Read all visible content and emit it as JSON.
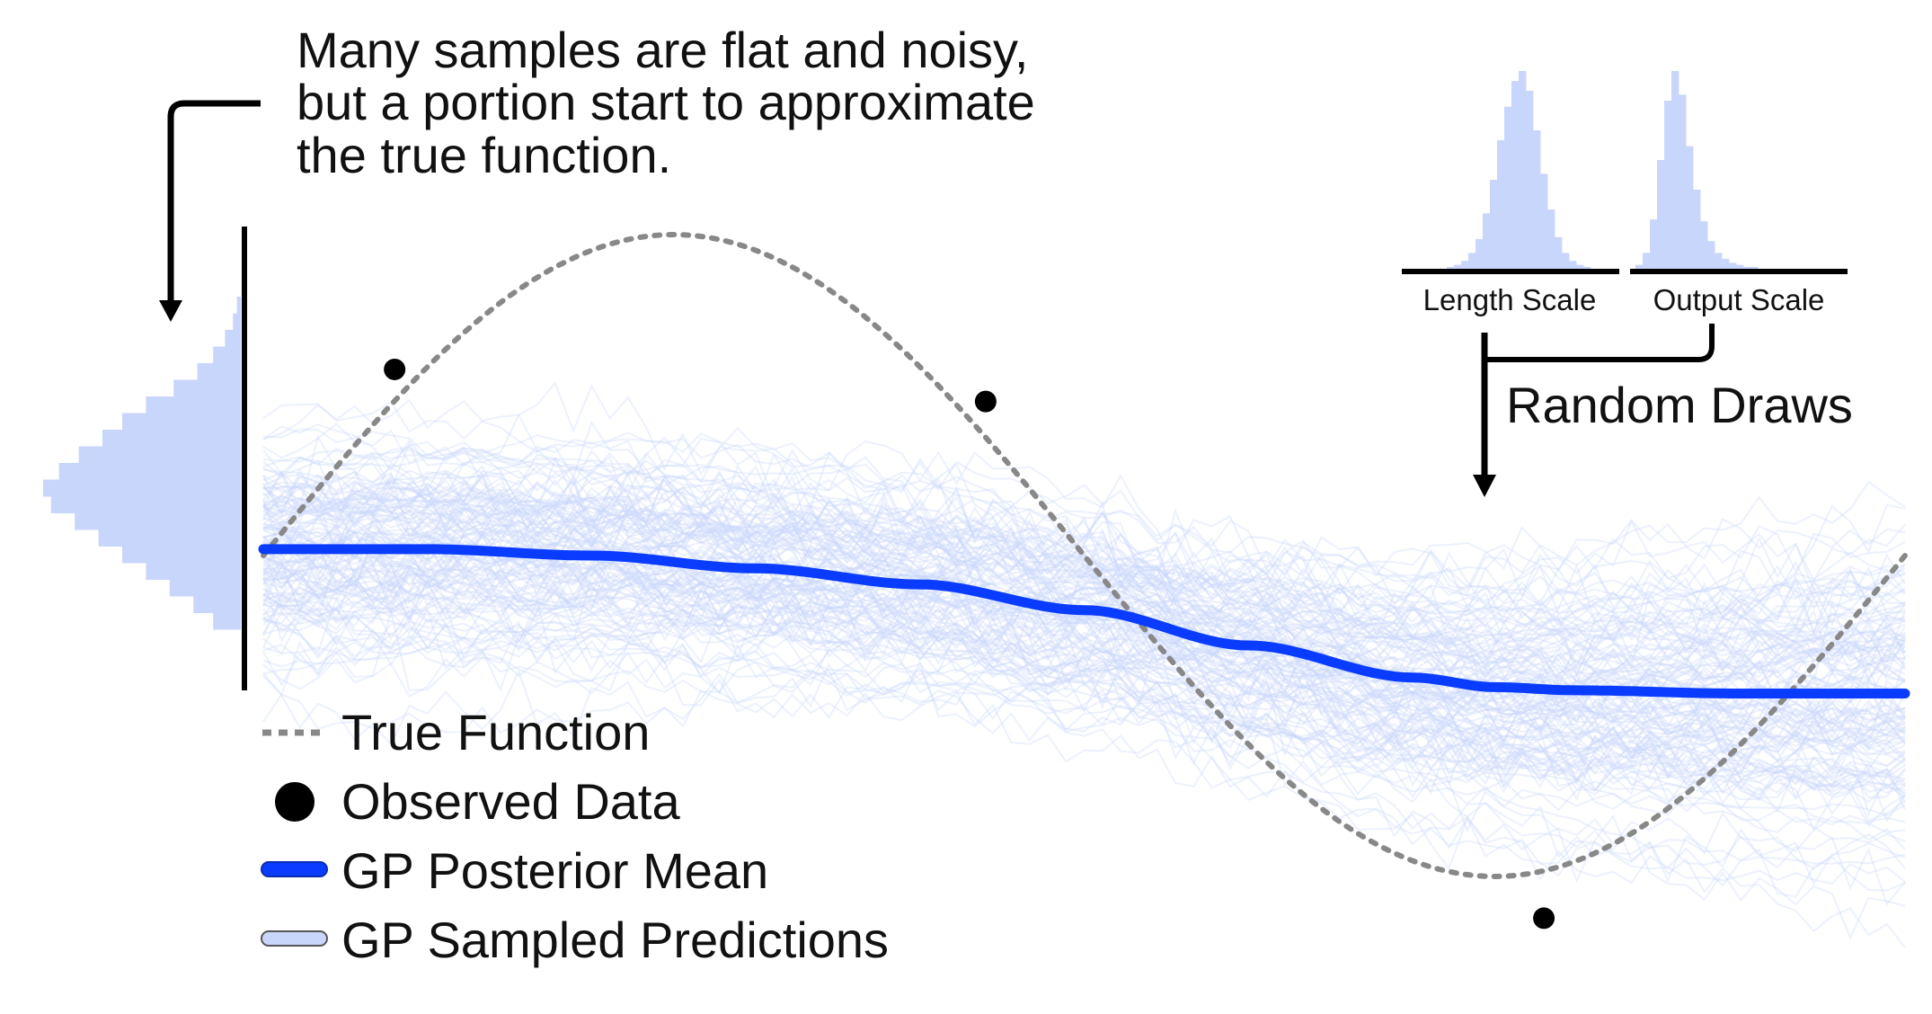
{
  "annotation": {
    "lines": [
      "Many samples are flat and noisy,",
      "but a portion start to approximate",
      "the true function."
    ]
  },
  "hyperparameters": {
    "length_scale_label": "Length Scale",
    "output_scale_label": "Output Scale",
    "random_draws_label": "Random Draws"
  },
  "legend": {
    "items": [
      {
        "label": "True Function",
        "icon": "dotted-line-icon"
      },
      {
        "label": "Observed Data",
        "icon": "filled-circle-icon"
      },
      {
        "label": "GP Posterior Mean",
        "icon": "thick-blue-line-icon"
      },
      {
        "label": "GP Sampled Predictions",
        "icon": "light-blue-line-icon"
      }
    ]
  },
  "colors": {
    "true_function": "#888888",
    "observed_data": "#000000",
    "posterior_mean": "#0a3cff",
    "samples": "#c9d6fb",
    "histogram": "#c9d6fb",
    "axis": "#000000"
  },
  "chart_data": {
    "type": "line",
    "xlim": [
      0,
      1
    ],
    "ylim": [
      -1.35,
      1.35
    ],
    "true_function": {
      "formula": "sin(2*pi*x)"
    },
    "observed_data": {
      "x": [
        0.08,
        0.44,
        0.78
      ],
      "y": [
        0.58,
        0.48,
        -1.13
      ]
    },
    "posterior_mean": {
      "x": [
        0.0,
        0.1,
        0.2,
        0.3,
        0.4,
        0.5,
        0.6,
        0.7,
        0.75,
        0.8,
        0.9,
        1.0
      ],
      "y": [
        0.02,
        0.02,
        0.0,
        -0.04,
        -0.09,
        -0.17,
        -0.28,
        -0.38,
        -0.41,
        -0.42,
        -0.43,
        -0.43
      ]
    },
    "histograms": {
      "prediction_marginal": [
        2,
        4,
        8,
        14,
        22,
        34,
        48,
        60,
        70,
        82,
        92,
        100,
        96,
        84,
        72,
        60,
        48,
        36,
        24,
        14
      ],
      "length_scale": [
        1,
        2,
        4,
        8,
        15,
        28,
        45,
        65,
        82,
        95,
        100,
        90,
        70,
        48,
        30,
        16,
        8,
        4,
        2,
        1
      ],
      "output_scale": [
        2,
        8,
        25,
        55,
        85,
        100,
        88,
        62,
        40,
        24,
        14,
        8,
        5,
        3,
        2,
        1,
        1,
        0,
        0,
        0
      ]
    }
  }
}
